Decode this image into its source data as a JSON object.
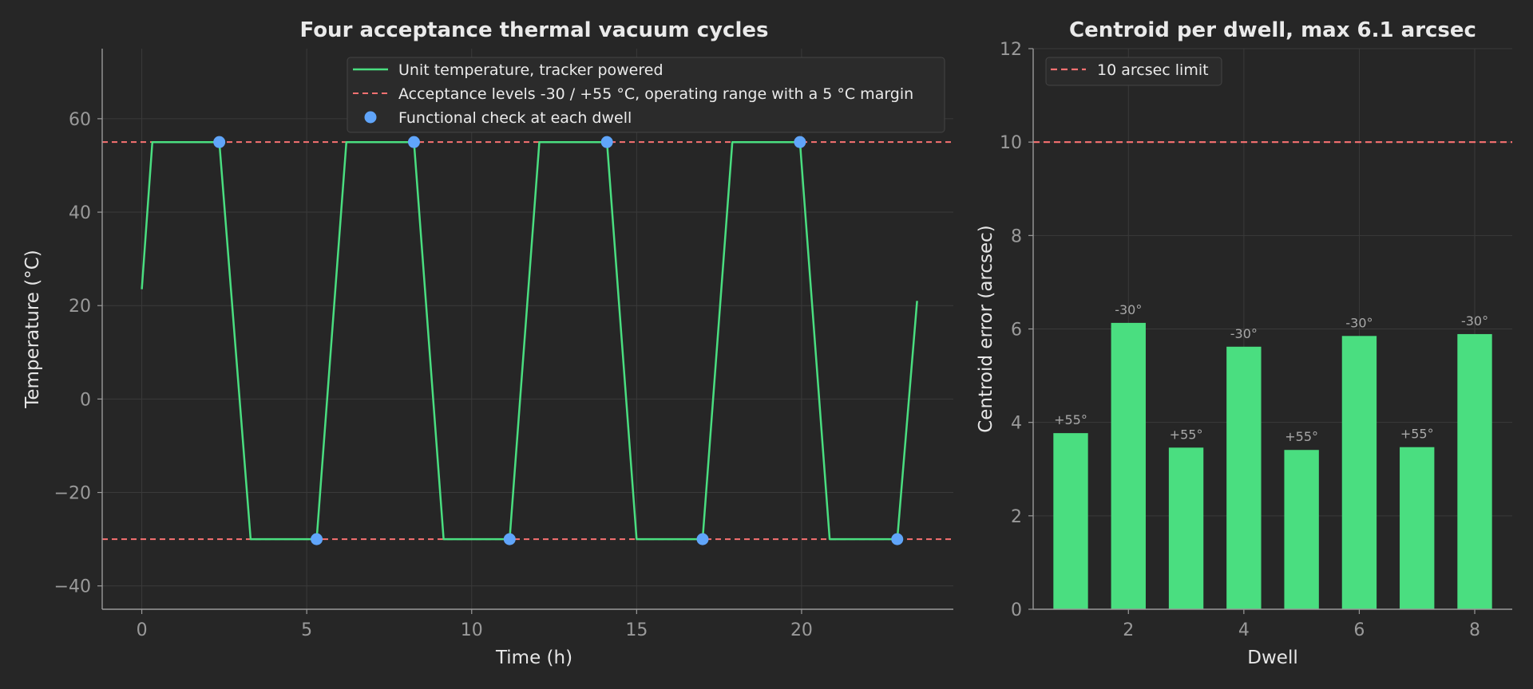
{
  "colors": {
    "background": "#262626",
    "line": "#4ade80",
    "bar": "#4ade80",
    "limit": "#f87171",
    "marker": "#60a5fa",
    "grid": "#3a3a3a",
    "spine": "#9a9a9a"
  },
  "chart_data": [
    {
      "type": "line",
      "title": "Four acceptance thermal vacuum cycles",
      "xlabel": "Time (h)",
      "ylabel": "Temperature (°C)",
      "xlim": [
        -1.2,
        24.6
      ],
      "ylim": [
        -45,
        75
      ],
      "xticks": [
        0,
        5,
        10,
        15,
        20
      ],
      "yticks": [
        -40,
        -20,
        0,
        20,
        40,
        60
      ],
      "grid": true,
      "legend_position": "top-right",
      "series": [
        {
          "name": "Unit temperature, tracker powered",
          "kind": "line",
          "x": [
            0,
            0.32,
            2.35,
            3.3,
            5.3,
            6.2,
            8.25,
            9.15,
            11.15,
            12.05,
            14.1,
            15.0,
            17.0,
            17.9,
            19.95,
            20.85,
            22.9,
            23.5
          ],
          "y": [
            23.5,
            55,
            55,
            -30,
            -30,
            55,
            55,
            -30,
            -30,
            55,
            55,
            -30,
            -30,
            55,
            55,
            -30,
            -30,
            21
          ]
        },
        {
          "name": "Acceptance levels -30 / +55 °C, operating range with a 5 °C margin",
          "kind": "hline",
          "values": [
            55,
            -30
          ]
        },
        {
          "name": "Functional check at each dwell",
          "kind": "scatter",
          "x": [
            2.35,
            5.3,
            8.25,
            11.15,
            14.1,
            17.0,
            19.95,
            22.9
          ],
          "y": [
            55,
            -30,
            55,
            -30,
            55,
            -30,
            55,
            -30
          ]
        }
      ]
    },
    {
      "type": "bar",
      "title": "Centroid per dwell, max 6.1 arcsec",
      "xlabel": "Dwell",
      "ylabel": "Centroid error (arcsec)",
      "xlim": [
        0.35,
        8.65
      ],
      "ylim": [
        0,
        12
      ],
      "xticks": [
        2,
        4,
        6,
        8
      ],
      "yticks": [
        0,
        2,
        4,
        6,
        8,
        10,
        12
      ],
      "grid": true,
      "legend_position": "top-left",
      "categories": [
        1,
        2,
        3,
        4,
        5,
        6,
        7,
        8
      ],
      "values": [
        3.77,
        6.13,
        3.46,
        5.62,
        3.41,
        5.85,
        3.47,
        5.89
      ],
      "bar_labels": [
        "+55°",
        "-30°",
        "+55°",
        "-30°",
        "+55°",
        "-30°",
        "+55°",
        "-30°"
      ],
      "limit": {
        "name": "10 arcsec limit",
        "value": 10
      }
    }
  ]
}
